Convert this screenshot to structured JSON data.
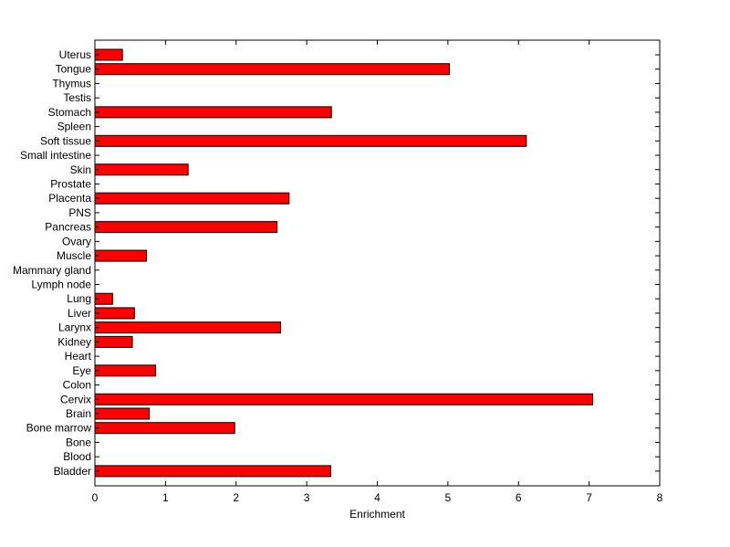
{
  "chart_data": {
    "type": "bar",
    "orientation": "horizontal",
    "title": "",
    "xlabel": "Enrichment",
    "ylabel": "",
    "xlim": [
      0,
      8
    ],
    "xticks": [
      0,
      1,
      2,
      3,
      4,
      5,
      6,
      7,
      8
    ],
    "grid": false,
    "bar_color": "#ff0000",
    "bar_edge_color": "#000000",
    "categories": [
      "Bladder",
      "Blood",
      "Bone",
      "Bone marrow",
      "Brain",
      "Cervix",
      "Colon",
      "Eye",
      "Heart",
      "Kidney",
      "Larynx",
      "Liver",
      "Lung",
      "Lymph node",
      "Mammary gland",
      "Muscle",
      "Ovary",
      "Pancreas",
      "PNS",
      "Placenta",
      "Prostate",
      "Skin",
      "Small intestine",
      "Soft tissue",
      "Spleen",
      "Stomach",
      "Testis",
      "Thymus",
      "Tongue",
      "Uterus"
    ],
    "values": [
      3.34,
      0,
      0,
      1.98,
      0.77,
      7.05,
      0,
      0.86,
      0,
      0.53,
      2.63,
      0.56,
      0.25,
      0,
      0,
      0.73,
      0,
      2.58,
      0,
      2.75,
      0,
      1.32,
      0,
      6.11,
      0,
      3.35,
      0,
      0,
      5.02,
      0.39
    ]
  }
}
